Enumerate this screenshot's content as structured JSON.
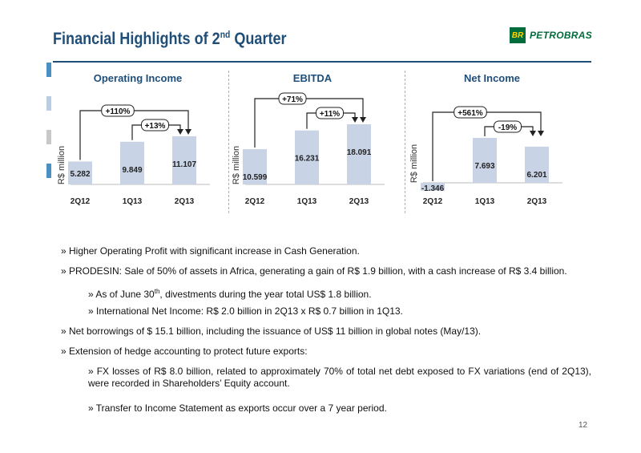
{
  "header": {
    "title_main": "Financial Highlights of 2",
    "title_sup": "nd",
    "title_tail": " Quarter",
    "logo_mark": "BR",
    "logo_text": "PETROBRAS"
  },
  "colors": {
    "navy": "#1f4e79",
    "bar": "#c9d3e6",
    "green": "#006c3b",
    "yellow": "#ffd400"
  },
  "chart_data": [
    {
      "type": "bar",
      "title": "Operating Income",
      "ylabel": "R$ million",
      "categories": [
        "2Q12",
        "1Q13",
        "2Q13"
      ],
      "values": [
        5282,
        9849,
        11107
      ],
      "value_labels": [
        "5.282",
        "9.849",
        "11.107"
      ],
      "annotations": [
        {
          "label": "+110%",
          "from": "2Q12",
          "to": "2Q13"
        },
        {
          "label": "+13%",
          "from": "1Q13",
          "to": "2Q13"
        }
      ]
    },
    {
      "type": "bar",
      "title": "EBITDA",
      "ylabel": "R$ million",
      "categories": [
        "2Q12",
        "1Q13",
        "2Q13"
      ],
      "values": [
        10599,
        16231,
        18091
      ],
      "value_labels": [
        "10.599",
        "16.231",
        "18.091"
      ],
      "annotations": [
        {
          "label": "+71%",
          "from": "2Q12",
          "to": "2Q13"
        },
        {
          "label": "+11%",
          "from": "1Q13",
          "to": "2Q13"
        }
      ]
    },
    {
      "type": "bar",
      "title": "Net Income",
      "ylabel": "R$ million",
      "categories": [
        "2Q12",
        "1Q13",
        "2Q13"
      ],
      "values": [
        -1346,
        7693,
        6201
      ],
      "value_labels": [
        "-1.346",
        "7.693",
        "6.201"
      ],
      "annotations": [
        {
          "label": "+561%",
          "from": "2Q12",
          "to": "2Q13"
        },
        {
          "label": "-19%",
          "from": "1Q13",
          "to": "2Q13"
        }
      ]
    }
  ],
  "bullets": [
    {
      "level": 1,
      "text": "» Higher Operating Profit with significant increase in Cash Generation."
    },
    {
      "level": 1,
      "text": "» PRODESIN: Sale of 50% of assets in Africa, generating a gain of R$ 1.9 billion, with a cash increase of R$ 3.4 billion."
    },
    {
      "level": 2,
      "text_a": "» As of June 30",
      "text_sup": "th",
      "text_b": ", divestments during the year total US$ 1.8 billion."
    },
    {
      "level": 2,
      "text": "» International Net Income: R$ 2.0 billion in 2Q13 x R$ 0.7 billion in 1Q13."
    },
    {
      "level": 1,
      "text": "» Net borrowings of $ 15.1 billion, including the issuance of US$ 11 billion in global notes (May/13)."
    },
    {
      "level": 1,
      "text": "» Extension of hedge accounting to protect future exports:"
    },
    {
      "level": 2,
      "text": "» FX losses of R$ 8.0 billion, related to approximately 70% of total net debt exposed to FX variations (end of 2Q13), were recorded in Shareholders’ Equity account."
    },
    {
      "level": 2,
      "text": "» Transfer to Income Statement as exports occur over a 7 year period."
    }
  ],
  "page_number": "12"
}
